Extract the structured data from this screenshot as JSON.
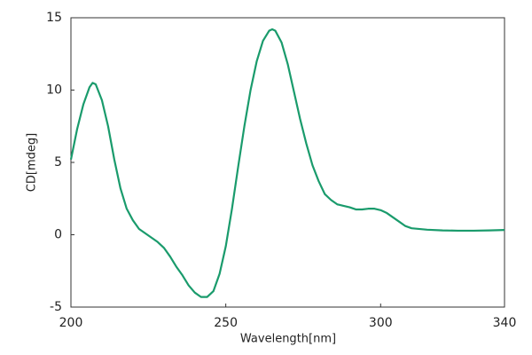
{
  "chart_data": {
    "type": "line",
    "x_label": "Wavelength[nm]",
    "y_label": "CD[mdeg]",
    "x": [
      200,
      202,
      204,
      206,
      207,
      208,
      210,
      212,
      214,
      216,
      218,
      220,
      222,
      224,
      226,
      228,
      230,
      232,
      234,
      236,
      238,
      240,
      242,
      244,
      246,
      248,
      250,
      252,
      254,
      256,
      258,
      260,
      262,
      264,
      265,
      266,
      268,
      270,
      272,
      274,
      276,
      278,
      280,
      282,
      284,
      286,
      288,
      290,
      292,
      294,
      296,
      298,
      300,
      302,
      304,
      306,
      308,
      310,
      315,
      320,
      325,
      330,
      335,
      340
    ],
    "series": [
      {
        "color": "#1a9b6c",
        "values": [
          5.2,
          7.3,
          9.0,
          10.2,
          10.5,
          10.4,
          9.3,
          7.5,
          5.2,
          3.2,
          1.8,
          1.0,
          0.4,
          0.1,
          -0.2,
          -0.5,
          -0.9,
          -1.5,
          -2.2,
          -2.8,
          -3.5,
          -4.0,
          -4.3,
          -4.3,
          -3.9,
          -2.7,
          -0.8,
          1.8,
          4.7,
          7.5,
          10.0,
          12.0,
          13.4,
          14.1,
          14.2,
          14.1,
          13.3,
          11.8,
          9.9,
          8.0,
          6.3,
          4.8,
          3.7,
          2.8,
          2.4,
          2.1,
          2.0,
          1.9,
          1.75,
          1.75,
          1.8,
          1.8,
          1.7,
          1.5,
          1.2,
          0.9,
          0.6,
          0.45,
          0.35,
          0.3,
          0.28,
          0.28,
          0.3,
          0.33
        ]
      }
    ],
    "xlim": [
      200,
      340
    ],
    "xticks": [
      200,
      250,
      300,
      340
    ],
    "ylim": [
      -5,
      15
    ],
    "yticks": [
      -5,
      0,
      5,
      10,
      15
    ],
    "grid": false
  }
}
